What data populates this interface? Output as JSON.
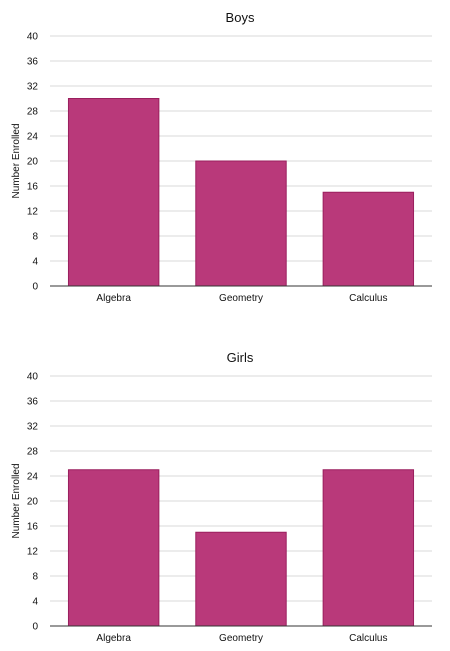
{
  "chart_data": [
    {
      "type": "bar",
      "title": "Boys",
      "xlabel": "",
      "ylabel": "Number Enrolled",
      "categories": [
        "Algebra",
        "Geometry",
        "Calculus"
      ],
      "values": [
        30,
        20,
        15
      ],
      "ylim": [
        0,
        40
      ],
      "yticks": [
        0,
        4,
        8,
        12,
        16,
        20,
        24,
        28,
        32,
        36,
        40
      ],
      "grid": true,
      "bar_color": "#b9397a",
      "bar_edge_color": "#9a1f5e"
    },
    {
      "type": "bar",
      "title": "Girls",
      "xlabel": "",
      "ylabel": "Number Enrolled",
      "categories": [
        "Algebra",
        "Geometry",
        "Calculus"
      ],
      "values": [
        25,
        15,
        25
      ],
      "ylim": [
        0,
        40
      ],
      "yticks": [
        0,
        4,
        8,
        12,
        16,
        20,
        24,
        28,
        32,
        36,
        40
      ],
      "grid": true,
      "bar_color": "#b9397a",
      "bar_edge_color": "#9a1f5e"
    }
  ]
}
